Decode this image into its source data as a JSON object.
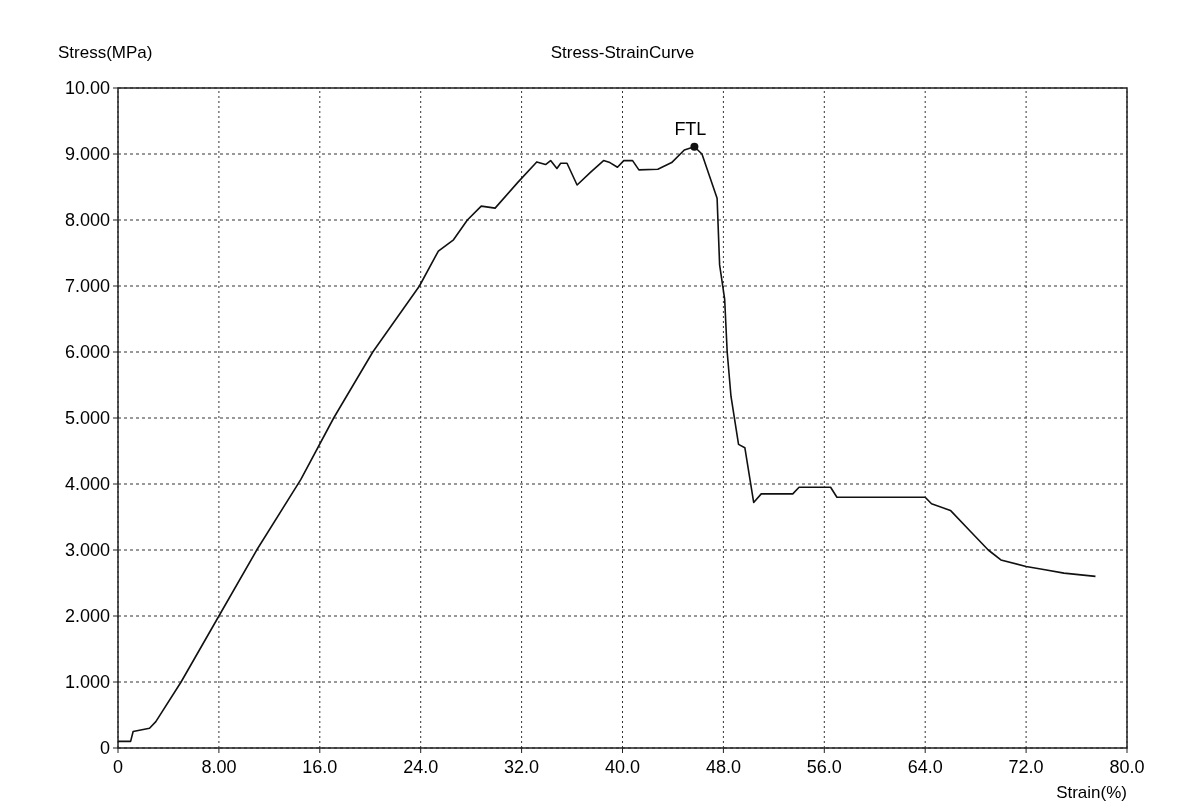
{
  "chart_data": {
    "type": "line",
    "title": "Stress-StrainCurve",
    "xlabel": "Strain(%)",
    "ylabel": "Stress(MPa)",
    "x": [
      0,
      1,
      1.2,
      2.5,
      3,
      5,
      8,
      11,
      14.5,
      17.1,
      20.2,
      23.9,
      25.4,
      26.6,
      27.7,
      28.8,
      29.9,
      31.7,
      33.2,
      33.9,
      34.3,
      34.8,
      35.1,
      35.6,
      36.4,
      37.5,
      38.5,
      39.0,
      39.6,
      40.1,
      40.8,
      41.3,
      42.8,
      43.9,
      44.9,
      45.7,
      46.3,
      47.5,
      47.7,
      48.1,
      48.3,
      48.6,
      49.2,
      49.7,
      50.4,
      51.0,
      53.5,
      54.0,
      56.5,
      57.0,
      64.0,
      64.5,
      66.0,
      67.5,
      69.0,
      70.0,
      72.0,
      73.5,
      75.0,
      77.5
    ],
    "series": [
      {
        "color": "#111111",
        "values": [
          0.1,
          0.1,
          0.25,
          0.3,
          0.4,
          1.0,
          2.0,
          3.0,
          4.07,
          5.0,
          6.0,
          7.0,
          7.53,
          7.7,
          8.0,
          8.21,
          8.18,
          8.57,
          8.88,
          8.84,
          8.9,
          8.78,
          8.86,
          8.86,
          8.53,
          8.73,
          8.9,
          8.87,
          8.8,
          8.9,
          8.9,
          8.76,
          8.77,
          8.87,
          9.06,
          9.11,
          9.0,
          8.33,
          7.32,
          6.8,
          6.0,
          5.33,
          4.6,
          4.55,
          3.72,
          3.85,
          3.85,
          3.95,
          3.95,
          3.8,
          3.8,
          3.7,
          3.6,
          3.3,
          3.0,
          2.85,
          2.75,
          2.7,
          2.65,
          2.6
        ]
      }
    ],
    "xlim": [
      0,
      80
    ],
    "ylim": [
      0,
      10
    ],
    "xticks": [
      0,
      {
        "value": 8,
        "label": "8.00"
      },
      {
        "value": 16,
        "label": "16.0"
      },
      {
        "value": 24,
        "label": "24.0"
      },
      {
        "value": 32,
        "label": "32.0"
      },
      {
        "value": 40,
        "label": "40.0"
      },
      {
        "value": 48,
        "label": "48.0"
      },
      {
        "value": 56,
        "label": "56.0"
      },
      {
        "value": 64,
        "label": "64.0"
      },
      {
        "value": 72,
        "label": "72.0"
      },
      {
        "value": 80,
        "label": "80.0"
      }
    ],
    "yticks": [
      0,
      {
        "value": 1,
        "label": "1.000"
      },
      {
        "value": 2,
        "label": "2.000"
      },
      {
        "value": 3,
        "label": "3.000"
      },
      {
        "value": 4,
        "label": "4.000"
      },
      {
        "value": 5,
        "label": "5.000"
      },
      {
        "value": 6,
        "label": "6.000"
      },
      {
        "value": 7,
        "label": "7.000"
      },
      {
        "value": 8,
        "label": "8.000"
      },
      {
        "value": 9,
        "label": "9.000"
      },
      {
        "value": 10,
        "label": "10.00"
      }
    ],
    "grid": true,
    "marker": "none",
    "line_style": "solid",
    "annotations": [
      {
        "text": "FTL",
        "x": 45.7,
        "y": 9.11
      }
    ]
  }
}
